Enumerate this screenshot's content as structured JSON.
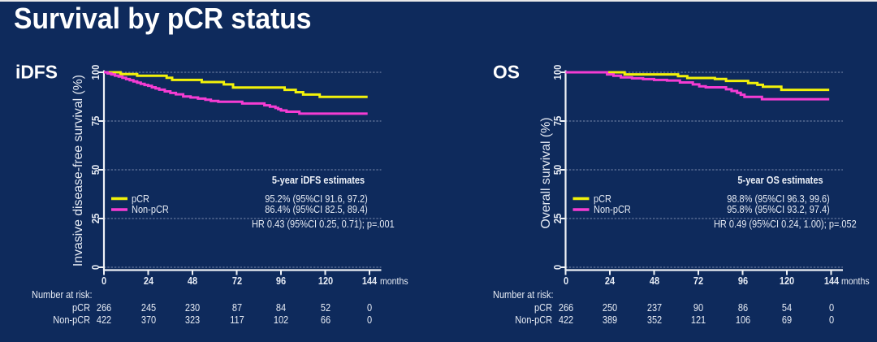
{
  "page": {
    "title": "Survival by pCR status"
  },
  "colors": {
    "background": "#0E2A5C",
    "top_strip": "#E9E9E9",
    "axis": "#EEF1F6",
    "grid": "#7A89AC",
    "text": "#E6EBF4",
    "pcr_yellow": "#F2F20A",
    "non_pcr_magenta": "#F53CD3"
  },
  "charts": [
    {
      "panel_label": "iDFS",
      "y_axis_title": "Invasive disease-free survival (%)",
      "y_ticks": [
        "100",
        "75",
        "50",
        "25",
        "0"
      ],
      "x_ticks": [
        "0",
        "24",
        "48",
        "72",
        "96",
        "120",
        "144"
      ],
      "x_unit": "months",
      "legend": [
        {
          "label": "pCR",
          "color": "#F2F20A"
        },
        {
          "label": "Non-pCR",
          "color": "#F53CD3"
        }
      ],
      "estimates_title": "5-year iDFS estimates",
      "estimate_lines": [
        "95.2% (95%CI 91.6, 97.2)",
        "86.4% (95%CI 82.5, 89.4)"
      ],
      "hazard_line": "HR 0.43 (95%CI 0.25, 0.71); p=.001",
      "number_at_risk_label": "Number at risk:",
      "risk_rows": [
        {
          "label": "pCR",
          "values": [
            "266",
            "245",
            "230",
            "87",
            "84",
            "52",
            "0"
          ]
        },
        {
          "label": "Non-pCR",
          "values": [
            "422",
            "370",
            "323",
            "117",
            "102",
            "66",
            "0"
          ]
        }
      ]
    },
    {
      "panel_label": "OS",
      "y_axis_title": "Overall survival (%)",
      "y_ticks": [
        "100",
        "75",
        "50",
        "25",
        "0"
      ],
      "x_ticks": [
        "0",
        "24",
        "48",
        "72",
        "96",
        "120",
        "144"
      ],
      "x_unit": "months",
      "legend": [
        {
          "label": "pCR",
          "color": "#F2F20A"
        },
        {
          "label": "Non-pCR",
          "color": "#F53CD3"
        }
      ],
      "estimates_title": "5-year OS estimates",
      "estimate_lines": [
        "98.8% (95%CI 96.3, 99.6)",
        "95.8% (95%CI 93.2, 97.4)"
      ],
      "hazard_line": "HR 0.49 (95%CI 0.24, 1.00); p=.052",
      "number_at_risk_label": "Number at risk:",
      "risk_rows": [
        {
          "label": "pCR",
          "values": [
            "266",
            "250",
            "237",
            "90",
            "86",
            "54",
            "0"
          ]
        },
        {
          "label": "Non-pCR",
          "values": [
            "422",
            "389",
            "352",
            "121",
            "106",
            "69",
            "0"
          ]
        }
      ]
    }
  ],
  "chart_data": [
    {
      "type": "line",
      "step": true,
      "title": "iDFS",
      "xlabel": "months",
      "ylabel": "Invasive disease-free survival (%)",
      "xlim": [
        0,
        150
      ],
      "ylim": [
        0,
        100
      ],
      "x_ticks": [
        0,
        24,
        48,
        72,
        96,
        120,
        144
      ],
      "y_ticks": [
        100,
        75,
        50,
        25,
        0
      ],
      "grid": "dashed horizontal",
      "legend_position": "inside left, at 25% level",
      "series": [
        {
          "name": "pCR",
          "color": "#F2F20A",
          "points": [
            [
              0,
              100
            ],
            [
              9,
              99.1
            ],
            [
              18,
              98.2
            ],
            [
              34,
              97.2
            ],
            [
              37,
              96.1
            ],
            [
              53,
              95.0
            ],
            [
              65,
              93.8
            ],
            [
              70,
              92.2
            ],
            [
              98,
              91.0
            ],
            [
              104,
              89.8
            ],
            [
              108,
              88.6
            ],
            [
              117,
              87.4
            ],
            [
              143,
              87.4
            ]
          ]
        },
        {
          "name": "Non-pCR",
          "color": "#F53CD3",
          "points": [
            [
              0,
              100
            ],
            [
              2,
              99.4
            ],
            [
              4,
              98.9
            ],
            [
              6,
              98.3
            ],
            [
              8,
              97.8
            ],
            [
              10,
              97.2
            ],
            [
              12,
              96.5
            ],
            [
              14,
              95.9
            ],
            [
              16,
              95.3
            ],
            [
              18,
              94.7
            ],
            [
              20,
              94.1
            ],
            [
              22,
              93.5
            ],
            [
              24,
              93.1
            ],
            [
              26,
              92.3
            ],
            [
              28,
              91.7
            ],
            [
              30,
              91.1
            ],
            [
              33,
              90.2
            ],
            [
              36,
              89.4
            ],
            [
              39,
              88.7
            ],
            [
              43,
              87.6
            ],
            [
              47,
              87.1
            ],
            [
              51,
              86.5
            ],
            [
              55,
              85.9
            ],
            [
              58,
              85.3
            ],
            [
              62,
              84.9
            ],
            [
              75,
              84.0
            ],
            [
              87,
              83.1
            ],
            [
              90,
              82.4
            ],
            [
              93,
              81.7
            ],
            [
              94.5,
              81.1
            ],
            [
              96,
              80.4
            ],
            [
              99,
              79.8
            ],
            [
              106,
              78.8
            ],
            [
              143,
              78.8
            ]
          ]
        }
      ],
      "annotations": {
        "five_year_estimates": {
          "pCR": "95.2% (95%CI 91.6, 97.2)",
          "Non-pCR": "86.4% (95%CI 82.5, 89.4)"
        },
        "hazard_ratio": "HR 0.43 (95%CI 0.25, 0.71); p=.001"
      },
      "number_at_risk": {
        "times": [
          0,
          24,
          48,
          72,
          96,
          120,
          144
        ],
        "pCR": [
          266,
          245,
          230,
          87,
          84,
          52,
          0
        ],
        "Non-pCR": [
          422,
          370,
          323,
          117,
          102,
          66,
          0
        ]
      }
    },
    {
      "type": "line",
      "step": true,
      "title": "OS",
      "xlabel": "months",
      "ylabel": "Overall survival (%)",
      "xlim": [
        0,
        150
      ],
      "ylim": [
        0,
        100
      ],
      "x_ticks": [
        0,
        24,
        48,
        72,
        96,
        120,
        144
      ],
      "y_ticks": [
        100,
        75,
        50,
        25,
        0
      ],
      "grid": "dashed horizontal",
      "legend_position": "inside left, at 25% level",
      "series": [
        {
          "name": "pCR",
          "color": "#F2F20A",
          "points": [
            [
              0,
              100
            ],
            [
              32,
              98.9
            ],
            [
              61,
              98.0
            ],
            [
              66,
              97.1
            ],
            [
              81,
              96.6
            ],
            [
              87,
              95.6
            ],
            [
              99,
              94.5
            ],
            [
              104,
              93.6
            ],
            [
              107,
              92.6
            ],
            [
              117,
              91.0
            ],
            [
              143,
              91.0
            ]
          ]
        },
        {
          "name": "Non-pCR",
          "color": "#F53CD3",
          "points": [
            [
              0,
              100
            ],
            [
              22.5,
              98.9
            ],
            [
              26,
              98.2
            ],
            [
              30,
              97.4
            ],
            [
              36,
              96.9
            ],
            [
              42,
              96.5
            ],
            [
              48,
              96.1
            ],
            [
              55,
              95.8
            ],
            [
              62,
              94.8
            ],
            [
              69,
              93.8
            ],
            [
              72.5,
              92.8
            ],
            [
              76,
              92.3
            ],
            [
              87,
              91.3
            ],
            [
              90,
              90.4
            ],
            [
              93,
              89.5
            ],
            [
              95,
              88.5
            ],
            [
              97,
              87.4
            ],
            [
              106.5,
              86.2
            ],
            [
              143,
              86.2
            ]
          ]
        }
      ],
      "annotations": {
        "five_year_estimates": {
          "pCR": "98.8% (95%CI 96.3, 99.6)",
          "Non-pCR": "95.8% (95%CI 93.2, 97.4)"
        },
        "hazard_ratio": "HR 0.49 (95%CI 0.24, 1.00); p=.052"
      },
      "number_at_risk": {
        "times": [
          0,
          24,
          48,
          72,
          96,
          120,
          144
        ],
        "pCR": [
          266,
          250,
          237,
          90,
          86,
          54,
          0
        ],
        "Non-pCR": [
          422,
          389,
          352,
          121,
          106,
          69,
          0
        ]
      }
    }
  ]
}
